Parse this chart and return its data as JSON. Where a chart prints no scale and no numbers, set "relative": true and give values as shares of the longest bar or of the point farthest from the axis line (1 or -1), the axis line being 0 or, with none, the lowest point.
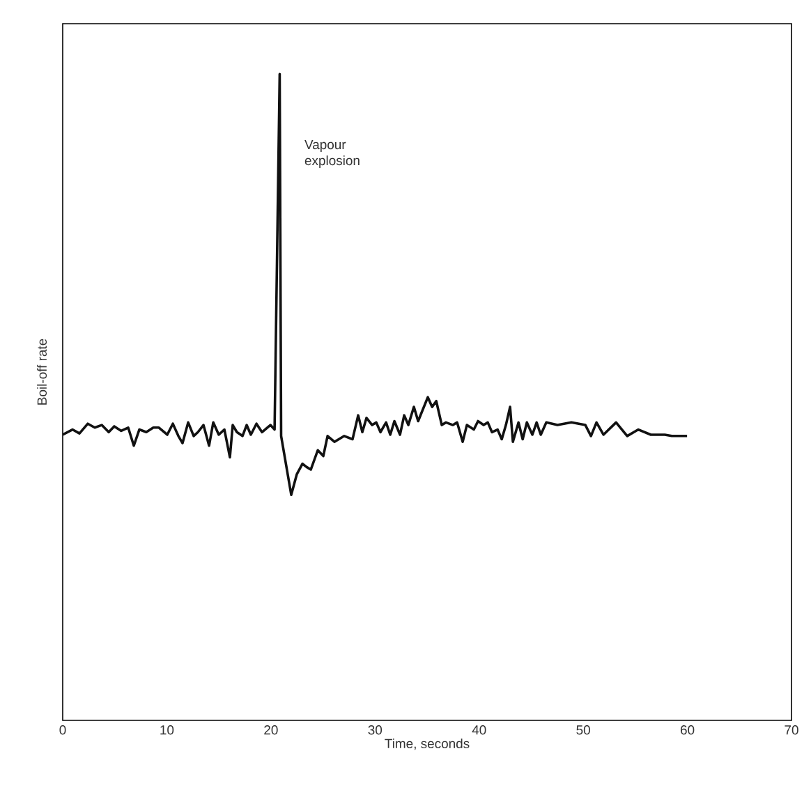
{
  "chart_data": {
    "type": "line",
    "xlabel": "Time, seconds",
    "ylabel": "Boil-off rate",
    "relative": true,
    "xlim": [
      0,
      70
    ],
    "xticks": [
      0,
      10,
      20,
      30,
      40,
      50,
      60,
      70
    ],
    "marker": "none",
    "line_style": "solid",
    "grid": false,
    "annotations": [
      "Vapour explosion"
    ],
    "series": [
      {
        "color": "#111111",
        "x": [
          0,
          0.94,
          1.61,
          2.41,
          3.08,
          3.75,
          4.42,
          4.95,
          5.62,
          6.29,
          6.83,
          7.36,
          8.03,
          8.7,
          9.24,
          10.04,
          10.58,
          11.11,
          11.51,
          12.05,
          12.58,
          12.99,
          13.52,
          14.06,
          14.46,
          14.99,
          15.53,
          16.06,
          16.33,
          16.73,
          17.27,
          17.67,
          18.07,
          18.61,
          19.14,
          19.95,
          20.35,
          20.84,
          20.98,
          21.95,
          22.49,
          23.03,
          23.43,
          23.83,
          24.5,
          25.03,
          25.44,
          26.1,
          27.04,
          27.84,
          28.38,
          28.78,
          29.18,
          29.72,
          30.12,
          30.52,
          31.06,
          31.46,
          31.86,
          32.4,
          32.8,
          33.2,
          33.73,
          34.14,
          35.07,
          35.48,
          35.88,
          36.41,
          36.81,
          37.48,
          37.88,
          38.42,
          38.82,
          39.49,
          39.89,
          40.43,
          40.83,
          41.23,
          41.77,
          42.17,
          42.57,
          42.97,
          43.24,
          43.78,
          44.18,
          44.58,
          45.11,
          45.52,
          45.92,
          46.45,
          47.52,
          48.86,
          50.2,
          50.74,
          51.27,
          51.94,
          53.15,
          54.22,
          55.29,
          56.49,
          57.83,
          58.5,
          59.97
        ],
        "values": [
          0.442,
          0.45,
          0.444,
          0.459,
          0.453,
          0.457,
          0.446,
          0.455,
          0.448,
          0.453,
          0.425,
          0.45,
          0.446,
          0.453,
          0.453,
          0.442,
          0.459,
          0.44,
          0.429,
          0.461,
          0.44,
          0.446,
          0.457,
          0.425,
          0.461,
          0.442,
          0.45,
          0.407,
          0.457,
          0.446,
          0.44,
          0.457,
          0.442,
          0.459,
          0.446,
          0.457,
          0.45,
          1,
          0.44,
          0.349,
          0.381,
          0.397,
          0.392,
          0.388,
          0.418,
          0.409,
          0.44,
          0.431,
          0.44,
          0.435,
          0.472,
          0.446,
          0.468,
          0.457,
          0.461,
          0.446,
          0.461,
          0.442,
          0.463,
          0.442,
          0.472,
          0.457,
          0.485,
          0.463,
          0.5,
          0.485,
          0.494,
          0.457,
          0.461,
          0.457,
          0.461,
          0.431,
          0.457,
          0.45,
          0.463,
          0.457,
          0.461,
          0.446,
          0.45,
          0.435,
          0.457,
          0.485,
          0.431,
          0.461,
          0.435,
          0.461,
          0.442,
          0.461,
          0.442,
          0.461,
          0.457,
          0.461,
          0.457,
          0.44,
          0.461,
          0.442,
          0.461,
          0.44,
          0.45,
          0.442,
          0.442,
          0.44,
          0.44
        ]
      }
    ]
  }
}
